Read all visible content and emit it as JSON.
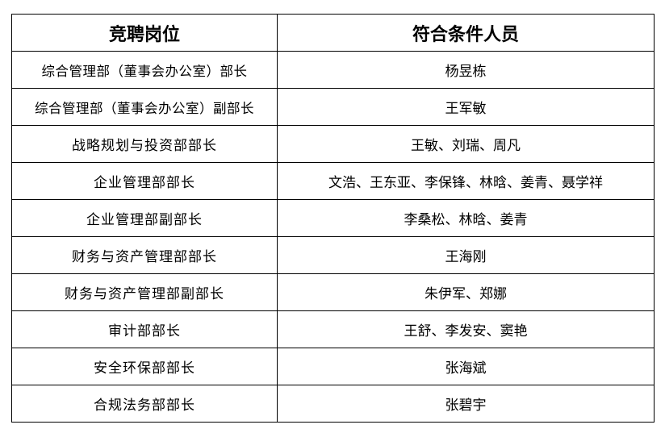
{
  "headers": [
    "竞聘岗位",
    "符合条件人员"
  ],
  "rows": [
    {
      "position": "综合管理部（董事会办公室）部长",
      "candidates": "杨昱栋"
    },
    {
      "position": "综合管理部（董事会办公室）副部长",
      "candidates": "王军敏"
    },
    {
      "position": "战略规划与投资部部长",
      "candidates": "王敏、刘瑞、周凡"
    },
    {
      "position": "企业管理部部长",
      "candidates": "文浩、王东亚、李保锋、林晗、姜青、聂学祥"
    },
    {
      "position": "企业管理部副部长",
      "candidates": "李桑松、林晗、姜青"
    },
    {
      "position": "财务与资产管理部部长",
      "candidates": "王海刚"
    },
    {
      "position": "财务与资产管理部副部长",
      "candidates": "朱伊军、郑娜"
    },
    {
      "position": "审计部部长",
      "candidates": "王舒、李发安、窦艳"
    },
    {
      "position": "安全环保部部长",
      "candidates": "张海斌"
    },
    {
      "position": "合规法务部部长",
      "candidates": "张碧宇"
    }
  ]
}
